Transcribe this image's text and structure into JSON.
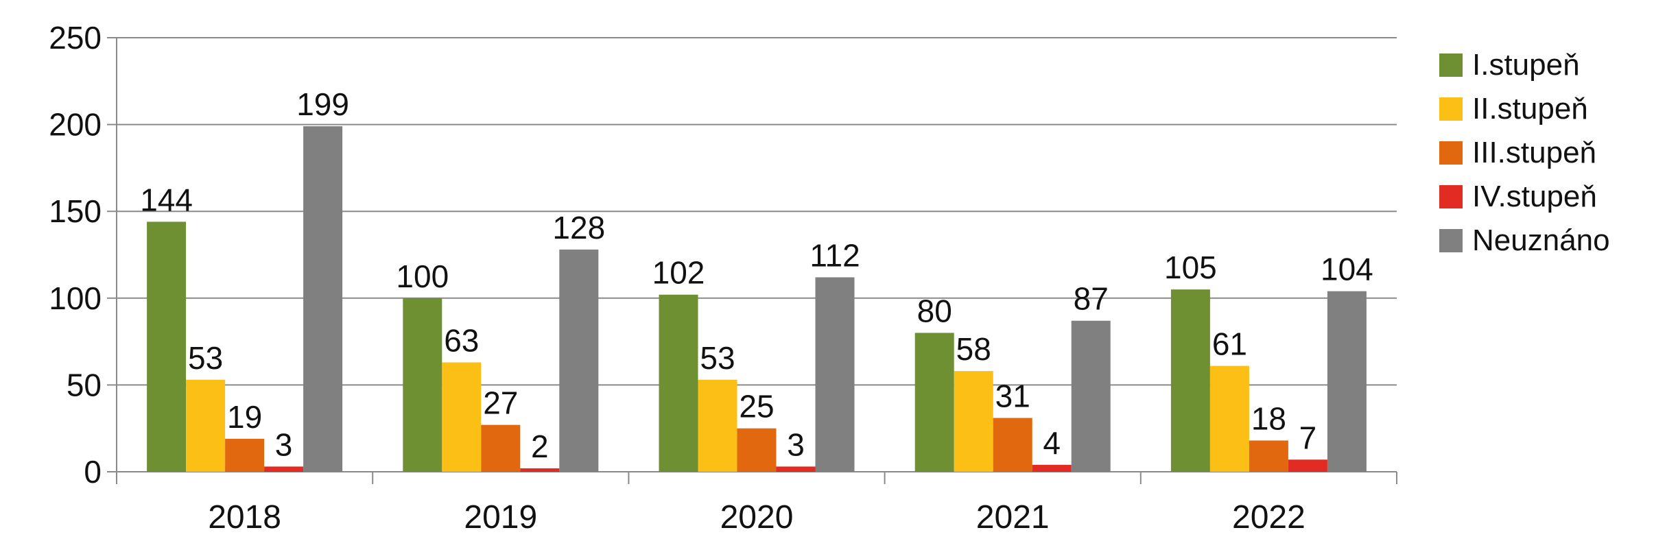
{
  "chart_data": {
    "type": "bar",
    "categories": [
      "2018",
      "2019",
      "2020",
      "2021",
      "2022"
    ],
    "series": [
      {
        "name": "I.stupeň",
        "color": "#6e8f32",
        "values": [
          144,
          100,
          102,
          80,
          105
        ]
      },
      {
        "name": "II.stupeň",
        "color": "#fbbf16",
        "values": [
          53,
          63,
          53,
          58,
          61
        ]
      },
      {
        "name": "III.stupeň",
        "color": "#e2680f",
        "values": [
          19,
          27,
          25,
          31,
          18
        ]
      },
      {
        "name": "IV.stupeň",
        "color": "#e22b22",
        "values": [
          3,
          2,
          3,
          4,
          7
        ]
      },
      {
        "name": "Neuznáno",
        "color": "#808080",
        "values": [
          199,
          128,
          112,
          87,
          104
        ]
      }
    ],
    "ylim": [
      0,
      250
    ],
    "yticks": [
      0,
      50,
      100,
      150,
      200,
      250
    ],
    "grid": true,
    "legend": "right",
    "data_labels": true
  }
}
